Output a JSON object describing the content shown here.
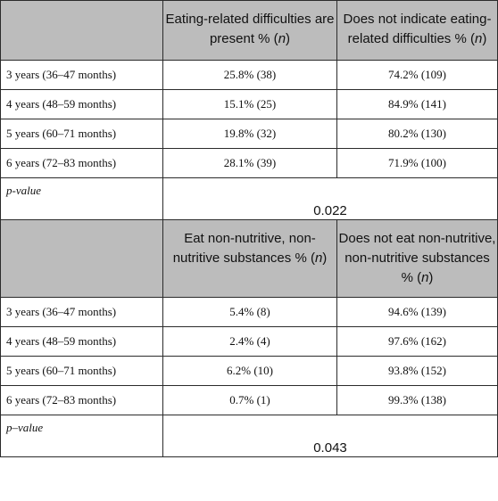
{
  "section1": {
    "col1_header": "Eating-related difficulties are present %",
    "col2_header": "Does not indicate eating-related difficulties %",
    "n_symbol": "n",
    "rows": [
      {
        "label": "3 years (36–47 months)",
        "yes": "25.8% (38)",
        "no": "74.2% (109)"
      },
      {
        "label": "4 years (48–59 months)",
        "yes": "15.1% (25)",
        "no": "84.9% (141)"
      },
      {
        "label": "5 years (60–71 months)",
        "yes": "19.8% (32)",
        "no": "80.2% (130)"
      },
      {
        "label": "6 years (72–83 months)",
        "yes": "28.1% (39)",
        "no": "71.9% (100)"
      }
    ],
    "p_label": "p-value",
    "p_value": "0.022"
  },
  "section2": {
    "col1_header": "Eat non-nutritive, non-nutritive substances %",
    "col2_header": "Does not eat non-nutritive, non-nutritive substances %",
    "n_symbol": "n",
    "rows": [
      {
        "label": "3 years (36–47 months)",
        "yes": "5.4% (8)",
        "no": "94.6% (139)"
      },
      {
        "label": "4 years (48–59 months)",
        "yes": "2.4% (4)",
        "no": "97.6% (162)"
      },
      {
        "label": "5 years (60–71 months)",
        "yes": "6.2% (10)",
        "no": "93.8% (152)"
      },
      {
        "label": "6 years (72–83 months)",
        "yes": "0.7% (1)",
        "no": "99.3% (138)"
      }
    ],
    "p_label": "p–value",
    "p_value": "0.043"
  }
}
